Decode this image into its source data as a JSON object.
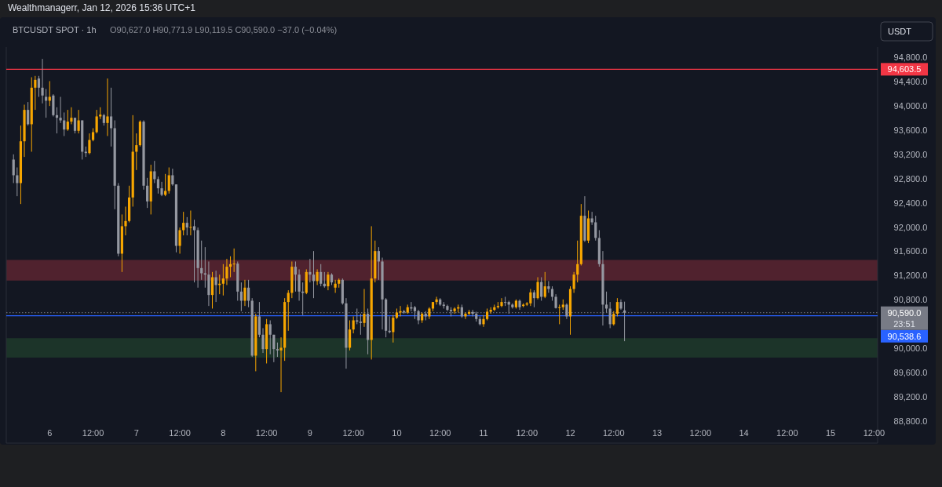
{
  "chart_data": {
    "type": "candlestick",
    "title": "BTCUSDT SPOT · 1h",
    "subtitle": "O90,627.0 H90,771.9 L90,119.5 C90,590.0 −37.0 (−0.04%)",
    "annotations": [
      "Wealthmanagerr, Jan 12, 2026 15:36 UTC+1",
      "USDT",
      "23:51"
    ],
    "xlim": [
      "2026-01-05T12:00",
      "2026-01-15T13:00"
    ],
    "xticks": [
      {
        "value": "2026-01-06T00:00",
        "label": "6"
      },
      {
        "value": "2026-01-06T12:00",
        "label": "12:00"
      },
      {
        "value": "2026-01-07T00:00",
        "label": "7"
      },
      {
        "value": "2026-01-07T12:00",
        "label": "12:00"
      },
      {
        "value": "2026-01-08T00:00",
        "label": "8"
      },
      {
        "value": "2026-01-08T12:00",
        "label": "12:00"
      },
      {
        "value": "2026-01-09T00:00",
        "label": "9"
      },
      {
        "value": "2026-01-09T12:00",
        "label": "12:00"
      },
      {
        "value": "2026-01-10T00:00",
        "label": "10"
      },
      {
        "value": "2026-01-10T12:00",
        "label": "12:00"
      },
      {
        "value": "2026-01-11T00:00",
        "label": "11"
      },
      {
        "value": "2026-01-11T12:00",
        "label": "12:00"
      },
      {
        "value": "2026-01-12T00:00",
        "label": "12"
      },
      {
        "value": "2026-01-12T12:00",
        "label": "12:00"
      },
      {
        "value": "2026-01-13T00:00",
        "label": "13"
      },
      {
        "value": "2026-01-13T12:00",
        "label": "12:00"
      },
      {
        "value": "2026-01-14T00:00",
        "label": "14"
      },
      {
        "value": "2026-01-14T12:00",
        "label": "12:00"
      },
      {
        "value": "2026-01-15T00:00",
        "label": "15"
      },
      {
        "value": "2026-01-15T12:00",
        "label": "12:00"
      }
    ],
    "ylim": [
      88440,
      94970
    ],
    "yticks": [
      {
        "value": 88800,
        "label": "88,800.0"
      },
      {
        "value": 89200,
        "label": "89,200.0"
      },
      {
        "value": 89600,
        "label": "89,600.0"
      },
      {
        "value": 90000,
        "label": "90,000.0"
      },
      {
        "value": 90800,
        "label": "90,800.0"
      },
      {
        "value": 91200,
        "label": "91,200.0"
      },
      {
        "value": 91600,
        "label": "91,600.0"
      },
      {
        "value": 92000,
        "label": "92,000.0"
      },
      {
        "value": 92400,
        "label": "92,400.0"
      },
      {
        "value": 92800,
        "label": "92,800.0"
      },
      {
        "value": 93200,
        "label": "93,200.0"
      },
      {
        "value": 93600,
        "label": "93,600.0"
      },
      {
        "value": 94000,
        "label": "94,000.0"
      },
      {
        "value": 94400,
        "label": "94,400.0"
      },
      {
        "value": 94800,
        "label": "94,800.0"
      }
    ],
    "grid": false,
    "bands": [
      {
        "axis": "y",
        "from": 91120,
        "to": 91460,
        "color": "#5c2430"
      },
      {
        "axis": "y",
        "from": 89850,
        "to": 90170,
        "color": "#1f3a2a"
      }
    ],
    "ref_lines": [
      {
        "axis": "y",
        "value": 94603.5,
        "label": "94,603.5",
        "color": "#f23645",
        "line_style": "solid"
      },
      {
        "axis": "y",
        "value": 90538.6,
        "label": "90,538.6",
        "color": "#2962ff",
        "line_style": "solid"
      },
      {
        "axis": "y",
        "value": 90590.0,
        "label": "90,590.0",
        "color": "#787b86",
        "line_style": "dotted"
      }
    ],
    "x": [
      "2026-01-05T14:00",
      "2026-01-05T15:00",
      "2026-01-05T16:00",
      "2026-01-05T17:00",
      "2026-01-05T18:00",
      "2026-01-05T19:00",
      "2026-01-05T20:00",
      "2026-01-05T21:00",
      "2026-01-05T22:00",
      "2026-01-05T23:00",
      "2026-01-06T00:00",
      "2026-01-06T01:00",
      "2026-01-06T02:00",
      "2026-01-06T03:00",
      "2026-01-06T04:00",
      "2026-01-06T05:00",
      "2026-01-06T06:00",
      "2026-01-06T07:00",
      "2026-01-06T08:00",
      "2026-01-06T09:00",
      "2026-01-06T10:00",
      "2026-01-06T11:00",
      "2026-01-06T12:00",
      "2026-01-06T13:00",
      "2026-01-06T14:00",
      "2026-01-06T15:00",
      "2026-01-06T16:00",
      "2026-01-06T17:00",
      "2026-01-06T18:00",
      "2026-01-06T19:00",
      "2026-01-06T20:00",
      "2026-01-06T21:00",
      "2026-01-06T22:00",
      "2026-01-06T23:00",
      "2026-01-07T00:00",
      "2026-01-07T01:00",
      "2026-01-07T02:00",
      "2026-01-07T03:00",
      "2026-01-07T04:00",
      "2026-01-07T05:00",
      "2026-01-07T06:00",
      "2026-01-07T07:00",
      "2026-01-07T08:00",
      "2026-01-07T09:00",
      "2026-01-07T10:00",
      "2026-01-07T11:00",
      "2026-01-07T12:00",
      "2026-01-07T13:00",
      "2026-01-07T14:00",
      "2026-01-07T15:00",
      "2026-01-07T16:00",
      "2026-01-07T17:00",
      "2026-01-07T18:00",
      "2026-01-07T19:00",
      "2026-01-07T20:00",
      "2026-01-07T21:00",
      "2026-01-07T22:00",
      "2026-01-07T23:00",
      "2026-01-08T00:00",
      "2026-01-08T01:00",
      "2026-01-08T02:00",
      "2026-01-08T03:00",
      "2026-01-08T04:00",
      "2026-01-08T05:00",
      "2026-01-08T06:00",
      "2026-01-08T07:00",
      "2026-01-08T08:00",
      "2026-01-08T09:00",
      "2026-01-08T10:00",
      "2026-01-08T11:00",
      "2026-01-08T12:00",
      "2026-01-08T13:00",
      "2026-01-08T14:00",
      "2026-01-08T15:00",
      "2026-01-08T16:00",
      "2026-01-08T17:00",
      "2026-01-08T18:00",
      "2026-01-08T19:00",
      "2026-01-08T20:00",
      "2026-01-08T21:00",
      "2026-01-08T22:00",
      "2026-01-08T23:00",
      "2026-01-09T00:00",
      "2026-01-09T01:00",
      "2026-01-09T02:00",
      "2026-01-09T03:00",
      "2026-01-09T04:00",
      "2026-01-09T05:00",
      "2026-01-09T06:00",
      "2026-01-09T07:00",
      "2026-01-09T08:00",
      "2026-01-09T09:00",
      "2026-01-09T10:00",
      "2026-01-09T11:00",
      "2026-01-09T12:00",
      "2026-01-09T13:00",
      "2026-01-09T14:00",
      "2026-01-09T15:00",
      "2026-01-09T16:00",
      "2026-01-09T17:00",
      "2026-01-09T18:00",
      "2026-01-09T19:00",
      "2026-01-09T20:00",
      "2026-01-09T21:00",
      "2026-01-09T22:00",
      "2026-01-09T23:00",
      "2026-01-10T00:00",
      "2026-01-10T01:00",
      "2026-01-10T02:00",
      "2026-01-10T03:00",
      "2026-01-10T04:00",
      "2026-01-10T05:00",
      "2026-01-10T06:00",
      "2026-01-10T07:00",
      "2026-01-10T08:00",
      "2026-01-10T09:00",
      "2026-01-10T10:00",
      "2026-01-10T11:00",
      "2026-01-10T12:00",
      "2026-01-10T13:00",
      "2026-01-10T14:00",
      "2026-01-10T15:00",
      "2026-01-10T16:00",
      "2026-01-10T17:00",
      "2026-01-10T18:00",
      "2026-01-10T19:00",
      "2026-01-10T20:00",
      "2026-01-10T21:00",
      "2026-01-10T22:00",
      "2026-01-10T23:00",
      "2026-01-11T00:00",
      "2026-01-11T01:00",
      "2026-01-11T02:00",
      "2026-01-11T03:00",
      "2026-01-11T04:00",
      "2026-01-11T05:00",
      "2026-01-11T06:00",
      "2026-01-11T07:00",
      "2026-01-11T08:00",
      "2026-01-11T09:00",
      "2026-01-11T10:00",
      "2026-01-11T11:00",
      "2026-01-11T12:00",
      "2026-01-11T13:00",
      "2026-01-11T14:00",
      "2026-01-11T15:00",
      "2026-01-11T16:00",
      "2026-01-11T17:00",
      "2026-01-11T18:00",
      "2026-01-11T19:00",
      "2026-01-11T20:00",
      "2026-01-11T21:00",
      "2026-01-11T22:00",
      "2026-01-11T23:00",
      "2026-01-12T00:00",
      "2026-01-12T01:00",
      "2026-01-12T02:00",
      "2026-01-12T03:00",
      "2026-01-12T04:00",
      "2026-01-12T05:00",
      "2026-01-12T06:00",
      "2026-01-12T07:00",
      "2026-01-12T08:00",
      "2026-01-12T09:00",
      "2026-01-12T10:00",
      "2026-01-12T11:00",
      "2026-01-12T12:00",
      "2026-01-12T13:00",
      "2026-01-12T14:00",
      "2026-01-12T15:00"
    ],
    "ohlc": [
      [
        93115,
        93201,
        92727,
        92856
      ],
      [
        92856,
        92985,
        92511,
        92727
      ],
      [
        92727,
        93675,
        92382,
        93416
      ],
      [
        93416,
        94020,
        93158,
        93934
      ],
      [
        93934,
        94063,
        93675,
        93697
      ],
      [
        93697,
        94472,
        93244,
        94300
      ],
      [
        94300,
        94494,
        93934,
        94429
      ],
      [
        94451,
        94494,
        94149,
        94300
      ],
      [
        94300,
        94774,
        94041,
        94171
      ],
      [
        94149,
        94278,
        93805,
        94085
      ],
      [
        94085,
        94408,
        93998,
        94149
      ],
      [
        94171,
        94192,
        93826,
        93847
      ],
      [
        93847,
        93977,
        93546,
        93804
      ],
      [
        93804,
        94149,
        93718,
        93761
      ],
      [
        93761,
        93891,
        93503,
        93610
      ],
      [
        93610,
        93934,
        93589,
        93740
      ],
      [
        93740,
        93977,
        93697,
        93804
      ],
      [
        93804,
        93804,
        93546,
        93589
      ],
      [
        93589,
        93934,
        93546,
        93761
      ],
      [
        93761,
        93761,
        93115,
        93244
      ],
      [
        93244,
        93330,
        93158,
        93222
      ],
      [
        93222,
        93546,
        93201,
        93438
      ],
      [
        93438,
        93632,
        93416,
        93567
      ],
      [
        93567,
        93934,
        93546,
        93826
      ],
      [
        93826,
        93977,
        93783,
        93856
      ],
      [
        93847,
        93869,
        93675,
        93718
      ],
      [
        93718,
        94451,
        93503,
        93826
      ],
      [
        93826,
        94300,
        93330,
        93632
      ],
      [
        93632,
        93761,
        92296,
        92684
      ],
      [
        92684,
        92727,
        91520,
        91563
      ],
      [
        91563,
        92210,
        91261,
        92016
      ],
      [
        92016,
        92339,
        91865,
        92102
      ],
      [
        92102,
        92684,
        92080,
        92490
      ],
      [
        92490,
        93847,
        92339,
        93244
      ],
      [
        93244,
        93546,
        92942,
        93352
      ],
      [
        93352,
        93761,
        93330,
        93740
      ],
      [
        93740,
        93761,
        92619,
        92684
      ],
      [
        92684,
        92813,
        92317,
        92425
      ],
      [
        92425,
        93029,
        92210,
        92921
      ],
      [
        92921,
        93093,
        92727,
        92792
      ],
      [
        92792,
        92835,
        92554,
        92641
      ],
      [
        92641,
        92748,
        92511,
        92533
      ],
      [
        92533,
        92878,
        92511,
        92598
      ],
      [
        92598,
        92985,
        92554,
        92856
      ],
      [
        92856,
        92964,
        92684,
        92705
      ],
      [
        92705,
        92705,
        91585,
        91692
      ],
      [
        91692,
        91994,
        91563,
        91951
      ],
      [
        91951,
        92253,
        91865,
        92072
      ],
      [
        92072,
        92166,
        91865,
        91994
      ],
      [
        91994,
        92274,
        91865,
        92003
      ],
      [
        92016,
        92123,
        91089,
        91951
      ],
      [
        91951,
        91994,
        91003,
        91326
      ],
      [
        91326,
        91779,
        91132,
        91240
      ],
      [
        91240,
        91671,
        91003,
        91218
      ],
      [
        91218,
        91434,
        90701,
        90882
      ],
      [
        90882,
        91261,
        90658,
        91175
      ],
      [
        91175,
        91283,
        90766,
        91046
      ],
      [
        91046,
        91218,
        90895,
        91068
      ],
      [
        91068,
        91391,
        90874,
        91154
      ],
      [
        91154,
        91477,
        91046,
        91348
      ],
      [
        91348,
        91520,
        91175,
        91391
      ],
      [
        91391,
        91649,
        91261,
        91399
      ],
      [
        91399,
        91434,
        90787,
        90938
      ],
      [
        90938,
        91089,
        90615,
        90787
      ],
      [
        90787,
        91132,
        90701,
        91003
      ],
      [
        91003,
        91132,
        90680,
        90787
      ],
      [
        90787,
        90830,
        89861,
        89882
      ],
      [
        89882,
        90572,
        89624,
        90529
      ],
      [
        90529,
        90766,
        90184,
        90227
      ],
      [
        90227,
        90335,
        89926,
        89990
      ],
      [
        89990,
        90486,
        89753,
        90400
      ],
      [
        90400,
        90464,
        89904,
        90227
      ],
      [
        90227,
        90227,
        89774,
        89990
      ],
      [
        89990,
        90098,
        89861,
        89968
      ],
      [
        89968,
        90184,
        89279,
        90012
      ],
      [
        90012,
        90830,
        89796,
        90766
      ],
      [
        90766,
        90960,
        90292,
        90917
      ],
      [
        90917,
        91434,
        90830,
        91348
      ],
      [
        91348,
        91434,
        90938,
        91218
      ],
      [
        91218,
        91305,
        90787,
        90938
      ],
      [
        90938,
        91089,
        90550,
        90917
      ],
      [
        90917,
        91305,
        90895,
        91261
      ],
      [
        91261,
        91477,
        91089,
        91218
      ],
      [
        91218,
        91606,
        90830,
        91111
      ],
      [
        91111,
        91305,
        91046,
        91261
      ],
      [
        91261,
        91391,
        91025,
        91068
      ],
      [
        91068,
        91261,
        91003,
        91025
      ],
      [
        91025,
        91261,
        90960,
        91218
      ],
      [
        91218,
        91240,
        91046,
        91089
      ],
      [
        91003,
        91132,
        90917,
        91068
      ],
      [
        91068,
        91154,
        91003,
        91132
      ],
      [
        91132,
        91154,
        90723,
        90744
      ],
      [
        90744,
        90830,
        89667,
        90012
      ],
      [
        90012,
        90464,
        89968,
        90313
      ],
      [
        90313,
        90529,
        90249,
        90464
      ],
      [
        90464,
        90658,
        90400,
        90443
      ],
      [
        90443,
        90572,
        90227,
        90421
      ],
      [
        90421,
        90981,
        90356,
        90572
      ],
      [
        90572,
        90658,
        89904,
        90141
      ],
      [
        90141,
        92016,
        89818,
        91154
      ],
      [
        91154,
        91779,
        91089,
        91606
      ],
      [
        91606,
        91671,
        91132,
        91434
      ],
      [
        91434,
        91498,
        90313,
        90809
      ],
      [
        90809,
        90830,
        90184,
        90292
      ],
      [
        90292,
        90529,
        90249,
        90270
      ],
      [
        90270,
        90550,
        90098,
        90507
      ],
      [
        90507,
        90658,
        90486,
        90593
      ],
      [
        90593,
        90701,
        90529,
        90615
      ],
      [
        90615,
        90637,
        90572,
        90593
      ],
      [
        90593,
        90723,
        90572,
        90680
      ],
      [
        90680,
        90766,
        90615,
        90658
      ],
      [
        90680,
        90701,
        90486,
        90615
      ],
      [
        90615,
        90637,
        90400,
        90464
      ],
      [
        90464,
        90593,
        90421,
        90572
      ],
      [
        90572,
        90615,
        90464,
        90529
      ],
      [
        90529,
        90680,
        90486,
        90658
      ],
      [
        90658,
        90766,
        90615,
        90766
      ],
      [
        90766,
        90852,
        90723,
        90809
      ],
      [
        90809,
        90830,
        90701,
        90723
      ],
      [
        90723,
        90766,
        90658,
        90701
      ],
      [
        90701,
        90723,
        90615,
        90637
      ],
      [
        90637,
        90680,
        90529,
        90615
      ],
      [
        90615,
        90680,
        90572,
        90658
      ],
      [
        90658,
        90723,
        90593,
        90680
      ],
      [
        90680,
        90723,
        90507,
        90529
      ],
      [
        90529,
        90593,
        90486,
        90572
      ],
      [
        90572,
        90637,
        90550,
        90602
      ],
      [
        90602,
        90637,
        90529,
        90572
      ],
      [
        90572,
        90606,
        90443,
        90486
      ],
      [
        90486,
        90529,
        90378,
        90400
      ],
      [
        90400,
        90550,
        90356,
        90486
      ],
      [
        90486,
        90658,
        90464,
        90606
      ],
      [
        90606,
        90680,
        90572,
        90637
      ],
      [
        90637,
        90723,
        90615,
        90680
      ],
      [
        90680,
        90766,
        90658,
        90701
      ],
      [
        90701,
        90830,
        90680,
        90766
      ],
      [
        90766,
        90852,
        90701,
        90760
      ],
      [
        90766,
        90787,
        90572,
        90723
      ],
      [
        90723,
        90744,
        90658,
        90680
      ],
      [
        90680,
        90809,
        90658,
        90787
      ],
      [
        90787,
        90809,
        90637,
        90680
      ],
      [
        90701,
        90744,
        90680,
        90723
      ],
      [
        90723,
        90766,
        90701,
        90744
      ],
      [
        90744,
        90981,
        90701,
        90925
      ],
      [
        90925,
        90960,
        90680,
        90830
      ],
      [
        90830,
        91175,
        90809,
        91097
      ],
      [
        91097,
        91175,
        90787,
        90852
      ],
      [
        90852,
        91261,
        90830,
        91025
      ],
      [
        91025,
        91111,
        90917,
        90981
      ],
      [
        90981,
        91025,
        90787,
        90852
      ],
      [
        90852,
        90895,
        90658,
        90667
      ],
      [
        90667,
        90723,
        90400,
        90680
      ],
      [
        90680,
        90809,
        90637,
        90723
      ],
      [
        90723,
        90744,
        90486,
        90529
      ],
      [
        90529,
        91025,
        90227,
        90981
      ],
      [
        90981,
        91261,
        90917,
        91218
      ],
      [
        91218,
        91779,
        91089,
        91391
      ],
      [
        91391,
        92382,
        91369,
        92188
      ],
      [
        92188,
        92511,
        91757,
        91779
      ],
      [
        91779,
        92274,
        91736,
        92145
      ],
      [
        92145,
        92253,
        92037,
        92080
      ],
      [
        92080,
        92188,
        91779,
        91822
      ],
      [
        91822,
        91951,
        91348,
        91391
      ],
      [
        91391,
        91606,
        90378,
        90723
      ],
      [
        90723,
        90938,
        90593,
        90658
      ],
      [
        90658,
        90766,
        90335,
        90400
      ],
      [
        90400,
        90615,
        90378,
        90572
      ],
      [
        90572,
        90830,
        90529,
        90766
      ],
      [
        90766,
        90809,
        90637,
        90658
      ],
      [
        90627.0,
        90771.9,
        90119.5,
        90590.0
      ]
    ],
    "colors": [
      "#9598a1",
      "#9598a1",
      "#f7a600",
      "#f7a600",
      "#9598a1",
      "#f7a600",
      "#f7a600",
      "#9598a1",
      "#9598a1",
      "#9598a1",
      "#f7a600",
      "#9598a1",
      "#9598a1",
      "#9598a1",
      "#9598a1",
      "#f7a600",
      "#f7a600",
      "#9598a1",
      "#f7a600",
      "#9598a1",
      "#9598a1",
      "#f7a600",
      "#f7a600",
      "#f7a600",
      "#f7a600",
      "#9598a1",
      "#f7a600",
      "#9598a1",
      "#9598a1",
      "#9598a1",
      "#f7a600",
      "#f7a600",
      "#f7a600",
      "#f7a600",
      "#f7a600",
      "#f7a600",
      "#9598a1",
      "#9598a1",
      "#f7a600",
      "#9598a1",
      "#9598a1",
      "#9598a1",
      "#f7a600",
      "#f7a600",
      "#9598a1",
      "#9598a1",
      "#f7a600",
      "#f7a600",
      "#9598a1",
      "#f7a600",
      "#9598a1",
      "#9598a1",
      "#9598a1",
      "#9598a1",
      "#9598a1",
      "#f7a600",
      "#9598a1",
      "#f7a600",
      "#f7a600",
      "#f7a600",
      "#f7a600",
      "#f7a600",
      "#9598a1",
      "#9598a1",
      "#f7a600",
      "#9598a1",
      "#9598a1",
      "#f7a600",
      "#9598a1",
      "#9598a1",
      "#f7a600",
      "#9598a1",
      "#9598a1",
      "#9598a1",
      "#f7a600",
      "#f7a600",
      "#f7a600",
      "#f7a600",
      "#9598a1",
      "#9598a1",
      "#9598a1",
      "#f7a600",
      "#9598a1",
      "#9598a1",
      "#f7a600",
      "#9598a1",
      "#9598a1",
      "#f7a600",
      "#9598a1",
      "#f7a600",
      "#f7a600",
      "#9598a1",
      "#9598a1",
      "#f7a600",
      "#f7a600",
      "#9598a1",
      "#9598a1",
      "#f7a600",
      "#9598a1",
      "#f7a600",
      "#f7a600",
      "#9598a1",
      "#9598a1",
      "#9598a1",
      "#9598a1",
      "#f7a600",
      "#f7a600",
      "#f7a600",
      "#9598a1",
      "#f7a600",
      "#9598a1",
      "#9598a1",
      "#9598a1",
      "#f7a600",
      "#9598a1",
      "#f7a600",
      "#f7a600",
      "#f7a600",
      "#9598a1",
      "#9598a1",
      "#9598a1",
      "#9598a1",
      "#f7a600",
      "#f7a600",
      "#9598a1",
      "#f7a600",
      "#f7a600",
      "#9598a1",
      "#9598a1",
      "#9598a1",
      "#f7a600",
      "#f7a600",
      "#f7a600",
      "#f7a600",
      "#f7a600",
      "#f7a600",
      "#9598a1",
      "#9598a1",
      "#9598a1",
      "#f7a600",
      "#9598a1",
      "#f7a600",
      "#f7a600",
      "#f7a600",
      "#9598a1",
      "#f7a600",
      "#9598a1",
      "#f7a600",
      "#9598a1",
      "#9598a1",
      "#9598a1",
      "#f7a600",
      "#f7a600",
      "#9598a1",
      "#f7a600",
      "#f7a600",
      "#f7a600",
      "#f7a600",
      "#9598a1",
      "#f7a600",
      "#9598a1",
      "#9598a1",
      "#9598a1",
      "#9598a1",
      "#9598a1",
      "#9598a1",
      "#f7a600",
      "#f7a600",
      "#9598a1",
      "#9598a1"
    ]
  }
}
